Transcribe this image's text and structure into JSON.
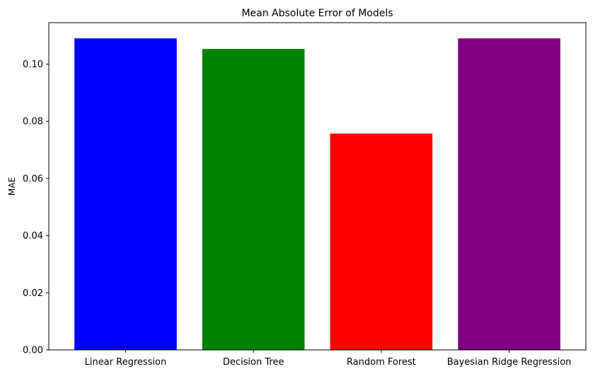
{
  "chart_data": {
    "type": "bar",
    "title": "Mean Absolute Error of Models",
    "xlabel": "",
    "ylabel": "MAE",
    "categories": [
      "Linear Regression",
      "Decision Tree",
      "Random Forest",
      "Bayesian Ridge Regression"
    ],
    "values": [
      0.109,
      0.1053,
      0.0757,
      0.109
    ],
    "colors": [
      "#0000ff",
      "#008000",
      "#ff0000",
      "#800080"
    ],
    "ylim": [
      0,
      0.1145
    ],
    "yticks": [
      0.0,
      0.02,
      0.04,
      0.06,
      0.08,
      0.1
    ],
    "ytick_labels": [
      "0.00",
      "0.02",
      "0.04",
      "0.06",
      "0.08",
      "0.10"
    ],
    "grid": false,
    "legend": "none"
  }
}
